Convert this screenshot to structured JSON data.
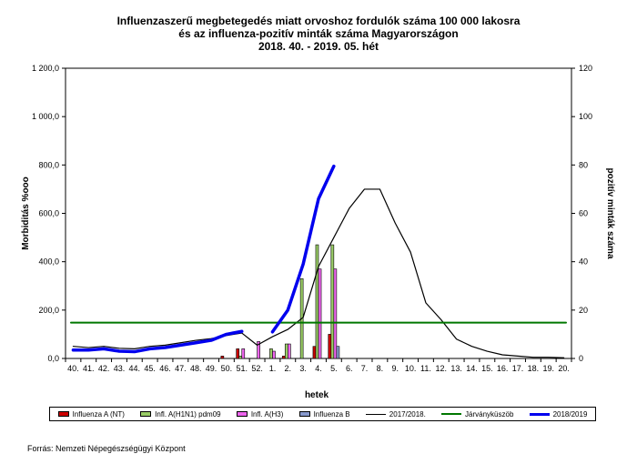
{
  "title_lines": [
    "Influenzaszerű megbetegedés miatt orvoshoz fordulók száma 100 000 lakosra",
    "és az influenza-pozitív minták száma Magyarországon",
    "2018. 40. - 2019. 05. hét"
  ],
  "source": "Forrás: Nemzeti Népegészségügyi Központ",
  "chart_data": {
    "type": "bar+line",
    "xlabel": "hetek",
    "ylabel_left": "Morbiditás %ooo",
    "ylabel_right": "pozitív minták száma",
    "ylim_left": [
      0,
      1200
    ],
    "ylim_right": [
      0,
      120
    ],
    "y_ticks_left": [
      "0,0",
      "200,0",
      "400,0",
      "600,0",
      "800,0",
      "1 000,0",
      "1 200,0"
    ],
    "y_ticks_right": [
      "0",
      "20",
      "40",
      "60",
      "80",
      "100",
      "120"
    ],
    "categories": [
      "40.",
      "41.",
      "42.",
      "43.",
      "44.",
      "45.",
      "46.",
      "47.",
      "48.",
      "49.",
      "50.",
      "51.",
      "52.",
      "1.",
      "2.",
      "3.",
      "4.",
      "5.",
      "6.",
      "7.",
      "8.",
      "9.",
      "10.",
      "11.",
      "12.",
      "13.",
      "14.",
      "15.",
      "16.",
      "17.",
      "18.",
      "19.",
      "20."
    ],
    "bar_series": [
      {
        "name": "Influenza A (NT)",
        "color": "#cc0000",
        "values": [
          0,
          0,
          0,
          0,
          0,
          0,
          0,
          0,
          0,
          0,
          1,
          4,
          0,
          0,
          1,
          0,
          5,
          10,
          0,
          0,
          0,
          0,
          0,
          0,
          0,
          0,
          0,
          0,
          0,
          0,
          0,
          0,
          0
        ]
      },
      {
        "name": "Infl. A(H1N1) pdm09",
        "color": "#99cc66",
        "values": [
          0,
          0,
          0,
          0,
          0,
          0,
          0,
          0,
          0,
          0,
          0,
          1,
          0,
          4,
          6,
          33,
          47,
          47,
          0,
          0,
          0,
          0,
          0,
          0,
          0,
          0,
          0,
          0,
          0,
          0,
          0,
          0,
          0
        ]
      },
      {
        "name": "Infl. A(H3)",
        "color": "#ee66ee",
        "values": [
          0,
          0,
          0,
          0,
          0,
          0,
          0,
          0,
          0,
          0,
          0,
          4,
          7,
          3,
          6,
          0,
          37,
          37,
          0,
          0,
          0,
          0,
          0,
          0,
          0,
          0,
          0,
          0,
          0,
          0,
          0,
          0,
          0
        ]
      },
      {
        "name": "Influenza B",
        "color": "#8899cc",
        "values": [
          0,
          0,
          0,
          0,
          0,
          0,
          0,
          0,
          0,
          0,
          0,
          0,
          0,
          0,
          0,
          0,
          0,
          5,
          0,
          0,
          0,
          0,
          0,
          0,
          0,
          0,
          0,
          0,
          0,
          0,
          0,
          0,
          0
        ]
      }
    ],
    "line_series": [
      {
        "name": "2017/2018.",
        "color": "#000000",
        "values": [
          50,
          45,
          50,
          42,
          40,
          50,
          55,
          65,
          75,
          82,
          95,
          105,
          55,
          90,
          120,
          170,
          380,
          500,
          620,
          700,
          700,
          560,
          440,
          230,
          160,
          80,
          50,
          30,
          15,
          10,
          5,
          5,
          3
        ]
      },
      {
        "name": "Járványküszöb",
        "color": "#007700",
        "values": [
          148,
          148,
          148,
          148,
          148,
          148,
          148,
          148,
          148,
          148,
          148,
          148,
          148,
          148,
          148,
          148,
          148,
          148,
          148,
          148,
          148,
          148,
          148,
          148,
          148,
          148,
          148,
          148,
          148,
          148,
          148,
          148,
          148
        ]
      },
      {
        "name": "2018/2019",
        "color": "#0000ee",
        "values": [
          35,
          35,
          40,
          30,
          28,
          40,
          45,
          55,
          65,
          75,
          100,
          112,
          null,
          110,
          200,
          390,
          660,
          795,
          null,
          null,
          null,
          null,
          null,
          null,
          null,
          null,
          null,
          null,
          null,
          null,
          null,
          null,
          null
        ]
      }
    ],
    "legend": [
      "Influenza A (NT)",
      "Infl. A(H1N1) pdm09",
      "Infl. A(H3)",
      "Influenza B",
      "2017/2018.",
      "Járványküszöb",
      "2018/2019"
    ],
    "legend_position": "bottom",
    "grid": false
  }
}
